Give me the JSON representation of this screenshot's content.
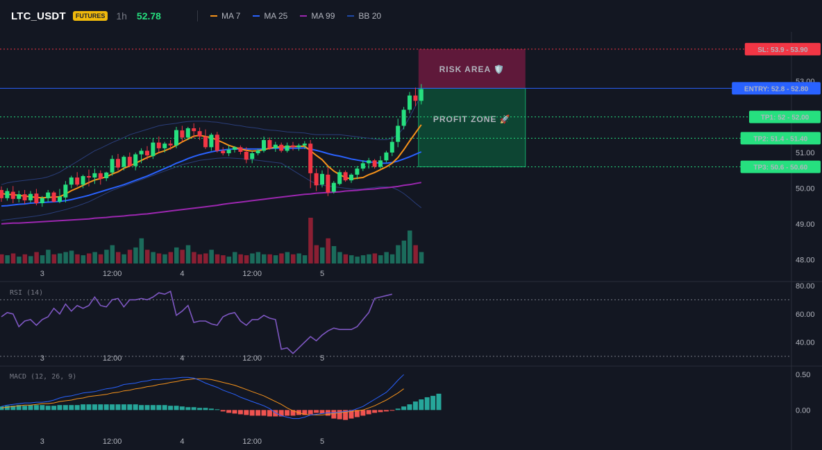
{
  "header": {
    "symbol": "LTC_USDT",
    "badge": "FUTURES",
    "timeframe": "1h",
    "price": "52.78",
    "legend": [
      {
        "label": "MA 7",
        "color": "#f7931a"
      },
      {
        "label": "MA 25",
        "color": "#2962ff"
      },
      {
        "label": "MA 99",
        "color": "#9c27b0"
      },
      {
        "label": "BB 20",
        "color": "#1e4aa8"
      }
    ]
  },
  "colors": {
    "up": "#26e07f",
    "down": "#f23645",
    "vol_up": "#1b6b5b",
    "vol_down": "#8b1f33",
    "ma7": "#f7931a",
    "ma25": "#2962ff",
    "ma99": "#9c27b0",
    "bb": "#2a3e7a",
    "rsi": "#7e57c2",
    "macd": "#2962ff",
    "signal": "#f7931a",
    "hist_up": "#26a69a",
    "hist_down": "#ef5350"
  },
  "price_axis": {
    "ticks": [
      "53.00",
      "52.00",
      "51.00",
      "50.00",
      "49.00",
      "48.00"
    ],
    "tick_values": [
      53,
      52,
      51,
      50,
      49,
      48
    ],
    "range": [
      47.85,
      54.15
    ]
  },
  "time_axis": {
    "labels": [
      "3",
      "12:00",
      "4",
      "12:00",
      "5"
    ],
    "label_bars": [
      7,
      19,
      31,
      43,
      55
    ]
  },
  "levels": [
    {
      "label": "SL: 53.9 - 53.90",
      "value": 53.9,
      "color": "#f23645",
      "style": "dotted"
    },
    {
      "label": "ENTRY: 52.8 - 52.80",
      "value": 52.8,
      "color": "#2962ff",
      "style": "solid"
    },
    {
      "label": "TP1: 52 - 52.00",
      "value": 52.0,
      "color": "#26e07f",
      "style": "dotted"
    },
    {
      "label": "TP2: 51.4 - 51.40",
      "value": 51.4,
      "color": "#26e07f",
      "style": "dotted"
    },
    {
      "label": "TP3: 50.6 - 50.60",
      "value": 50.6,
      "color": "#26e07f",
      "style": "dotted"
    }
  ],
  "zones": {
    "risk": {
      "label": "RISK AREA 🛡️",
      "top": 53.9,
      "bottom": 52.8
    },
    "profit": {
      "label": "PROFIT ZONE 🚀",
      "top": 52.8,
      "bottom": 50.6
    }
  },
  "rsi": {
    "title": "RSI (14)",
    "ticks": [
      "80.00",
      "60.00",
      "40.00"
    ],
    "tick_values": [
      80,
      60,
      40
    ],
    "bands": [
      70,
      30
    ],
    "range": [
      27,
      82
    ]
  },
  "macd": {
    "title": "MACD (12, 26, 9)",
    "ticks": [
      "0.50",
      "0.00"
    ],
    "tick_values": [
      0.5,
      0.0
    ],
    "range": [
      -0.3,
      0.6
    ]
  },
  "chart_data": {
    "type": "candlestick",
    "candles": [
      {
        "o": 49.95,
        "h": 50.05,
        "l": 49.62,
        "c": 49.72
      },
      {
        "o": 49.72,
        "h": 50.0,
        "l": 49.65,
        "c": 49.92
      },
      {
        "o": 49.9,
        "h": 50.06,
        "l": 49.58,
        "c": 49.7
      },
      {
        "o": 49.7,
        "h": 49.93,
        "l": 49.6,
        "c": 49.83
      },
      {
        "o": 49.83,
        "h": 49.95,
        "l": 49.56,
        "c": 49.66
      },
      {
        "o": 49.66,
        "h": 49.92,
        "l": 49.6,
        "c": 49.84
      },
      {
        "o": 49.85,
        "h": 49.98,
        "l": 49.52,
        "c": 49.58
      },
      {
        "o": 49.58,
        "h": 49.78,
        "l": 49.48,
        "c": 49.72
      },
      {
        "o": 49.72,
        "h": 49.95,
        "l": 49.62,
        "c": 49.88
      },
      {
        "o": 49.88,
        "h": 49.92,
        "l": 49.6,
        "c": 49.62
      },
      {
        "o": 49.62,
        "h": 49.98,
        "l": 49.58,
        "c": 49.76
      },
      {
        "o": 49.74,
        "h": 50.2,
        "l": 49.6,
        "c": 50.1
      },
      {
        "o": 50.1,
        "h": 50.35,
        "l": 50.0,
        "c": 50.3
      },
      {
        "o": 50.3,
        "h": 50.45,
        "l": 50.05,
        "c": 50.1
      },
      {
        "o": 50.1,
        "h": 50.38,
        "l": 50.0,
        "c": 50.34
      },
      {
        "o": 50.34,
        "h": 50.52,
        "l": 50.05,
        "c": 50.3
      },
      {
        "o": 50.3,
        "h": 50.55,
        "l": 50.12,
        "c": 50.42
      },
      {
        "o": 50.42,
        "h": 50.5,
        "l": 50.1,
        "c": 50.26
      },
      {
        "o": 50.28,
        "h": 50.46,
        "l": 50.2,
        "c": 50.44
      },
      {
        "o": 50.44,
        "h": 50.92,
        "l": 50.35,
        "c": 50.82
      },
      {
        "o": 50.82,
        "h": 50.96,
        "l": 50.5,
        "c": 50.58
      },
      {
        "o": 50.6,
        "h": 50.92,
        "l": 50.5,
        "c": 50.88
      },
      {
        "o": 50.88,
        "h": 51.0,
        "l": 50.6,
        "c": 50.62
      },
      {
        "o": 50.62,
        "h": 51.0,
        "l": 50.5,
        "c": 50.95
      },
      {
        "o": 50.95,
        "h": 51.12,
        "l": 50.7,
        "c": 51.05
      },
      {
        "o": 51.05,
        "h": 51.18,
        "l": 50.8,
        "c": 50.92
      },
      {
        "o": 50.9,
        "h": 51.4,
        "l": 50.82,
        "c": 51.28
      },
      {
        "o": 51.28,
        "h": 51.45,
        "l": 51.0,
        "c": 51.12
      },
      {
        "o": 51.12,
        "h": 51.3,
        "l": 51.0,
        "c": 51.25
      },
      {
        "o": 51.25,
        "h": 51.35,
        "l": 51.08,
        "c": 51.2
      },
      {
        "o": 51.2,
        "h": 51.72,
        "l": 51.12,
        "c": 51.63
      },
      {
        "o": 51.62,
        "h": 51.75,
        "l": 51.3,
        "c": 51.42
      },
      {
        "o": 51.42,
        "h": 51.72,
        "l": 51.35,
        "c": 51.68
      },
      {
        "o": 51.68,
        "h": 51.82,
        "l": 51.4,
        "c": 51.6
      },
      {
        "o": 51.6,
        "h": 51.7,
        "l": 51.35,
        "c": 51.45
      },
      {
        "o": 51.45,
        "h": 51.65,
        "l": 51.1,
        "c": 51.15
      },
      {
        "o": 51.15,
        "h": 51.55,
        "l": 51.05,
        "c": 51.5
      },
      {
        "o": 51.5,
        "h": 51.58,
        "l": 51.0,
        "c": 51.05
      },
      {
        "o": 51.05,
        "h": 51.15,
        "l": 50.92,
        "c": 50.98
      },
      {
        "o": 50.98,
        "h": 51.2,
        "l": 50.9,
        "c": 51.08
      },
      {
        "o": 51.08,
        "h": 51.18,
        "l": 51.0,
        "c": 51.15
      },
      {
        "o": 51.15,
        "h": 51.2,
        "l": 50.95,
        "c": 51.02
      },
      {
        "o": 51.02,
        "h": 51.15,
        "l": 50.7,
        "c": 50.8
      },
      {
        "o": 50.82,
        "h": 51.05,
        "l": 50.7,
        "c": 50.98
      },
      {
        "o": 50.98,
        "h": 51.1,
        "l": 50.92,
        "c": 51.06
      },
      {
        "o": 51.05,
        "h": 51.45,
        "l": 51.0,
        "c": 51.35
      },
      {
        "o": 51.35,
        "h": 51.42,
        "l": 51.08,
        "c": 51.12
      },
      {
        "o": 51.12,
        "h": 51.3,
        "l": 51.02,
        "c": 51.22
      },
      {
        "o": 51.22,
        "h": 51.28,
        "l": 51.0,
        "c": 51.05
      },
      {
        "o": 51.05,
        "h": 51.28,
        "l": 51.0,
        "c": 51.2
      },
      {
        "o": 51.2,
        "h": 51.3,
        "l": 51.06,
        "c": 51.15
      },
      {
        "o": 51.15,
        "h": 51.25,
        "l": 51.05,
        "c": 51.2
      },
      {
        "o": 51.2,
        "h": 51.32,
        "l": 51.1,
        "c": 51.25
      },
      {
        "o": 51.25,
        "h": 51.35,
        "l": 50.0,
        "c": 50.42
      },
      {
        "o": 50.42,
        "h": 50.55,
        "l": 49.92,
        "c": 50.08
      },
      {
        "o": 50.1,
        "h": 50.5,
        "l": 50.02,
        "c": 50.4
      },
      {
        "o": 50.38,
        "h": 50.6,
        "l": 49.78,
        "c": 49.88
      },
      {
        "o": 49.9,
        "h": 50.2,
        "l": 49.85,
        "c": 50.15
      },
      {
        "o": 50.12,
        "h": 50.52,
        "l": 50.08,
        "c": 50.45
      },
      {
        "o": 50.45,
        "h": 50.5,
        "l": 50.18,
        "c": 50.22
      },
      {
        "o": 50.22,
        "h": 50.42,
        "l": 50.15,
        "c": 50.38
      },
      {
        "o": 50.38,
        "h": 50.62,
        "l": 50.25,
        "c": 50.55
      },
      {
        "o": 50.55,
        "h": 50.78,
        "l": 50.48,
        "c": 50.7
      },
      {
        "o": 50.7,
        "h": 50.85,
        "l": 50.55,
        "c": 50.78
      },
      {
        "o": 50.78,
        "h": 50.82,
        "l": 50.55,
        "c": 50.6
      },
      {
        "o": 50.6,
        "h": 50.9,
        "l": 50.55,
        "c": 50.78
      },
      {
        "o": 50.78,
        "h": 51.05,
        "l": 50.72,
        "c": 51.0
      },
      {
        "o": 51.0,
        "h": 51.45,
        "l": 50.9,
        "c": 51.3
      },
      {
        "o": 51.3,
        "h": 51.95,
        "l": 51.15,
        "c": 51.75
      },
      {
        "o": 51.75,
        "h": 52.28,
        "l": 51.65,
        "c": 52.2
      },
      {
        "o": 52.2,
        "h": 52.7,
        "l": 52.1,
        "c": 52.6
      },
      {
        "o": 52.6,
        "h": 52.82,
        "l": 52.3,
        "c": 52.45
      },
      {
        "o": 52.45,
        "h": 52.92,
        "l": 52.35,
        "c": 52.78
      }
    ],
    "ma7": [
      49.85,
      49.83,
      49.82,
      49.8,
      49.78,
      49.76,
      49.74,
      49.73,
      49.74,
      49.75,
      49.76,
      49.84,
      49.93,
      50.0,
      50.08,
      50.16,
      50.23,
      50.27,
      50.32,
      50.4,
      50.46,
      50.56,
      50.62,
      50.7,
      50.78,
      50.86,
      50.92,
      51.0,
      51.05,
      51.12,
      51.2,
      51.3,
      51.38,
      51.46,
      51.48,
      51.45,
      51.42,
      51.35,
      51.28,
      51.2,
      51.15,
      51.1,
      51.06,
      51.04,
      51.05,
      51.08,
      51.12,
      51.15,
      51.16,
      51.16,
      51.17,
      51.17,
      51.18,
      51.05,
      50.92,
      50.8,
      50.62,
      50.48,
      50.38,
      50.3,
      50.26,
      50.28,
      50.3,
      50.38,
      50.44,
      50.52,
      50.6,
      50.7,
      50.86,
      51.08,
      51.32,
      51.55,
      51.78
    ],
    "ma25": [
      49.5,
      49.51,
      49.53,
      49.55,
      49.56,
      49.58,
      49.59,
      49.6,
      49.61,
      49.62,
      49.63,
      49.65,
      49.68,
      49.72,
      49.76,
      49.8,
      49.85,
      49.9,
      49.95,
      50.0,
      50.05,
      50.1,
      50.16,
      50.22,
      50.28,
      50.34,
      50.41,
      50.48,
      50.55,
      50.62,
      50.7,
      50.76,
      50.83,
      50.89,
      50.94,
      50.98,
      51.02,
      51.05,
      51.07,
      51.09,
      51.1,
      51.1,
      51.1,
      51.1,
      51.1,
      51.1,
      51.11,
      51.12,
      51.12,
      51.12,
      51.12,
      51.12,
      51.13,
      51.1,
      51.06,
      51.02,
      50.97,
      50.93,
      50.9,
      50.86,
      50.82,
      50.79,
      50.76,
      50.74,
      50.72,
      50.7,
      50.7,
      50.72,
      50.76,
      50.82,
      50.88,
      50.95,
      51.02
    ],
    "ma99": [
      49.0,
      49.01,
      49.02,
      49.02,
      49.03,
      49.04,
      49.05,
      49.06,
      49.07,
      49.08,
      49.09,
      49.1,
      49.11,
      49.12,
      49.13,
      49.14,
      49.16,
      49.17,
      49.18,
      49.2,
      49.21,
      49.22,
      49.24,
      49.25,
      49.27,
      49.28,
      49.3,
      49.32,
      49.34,
      49.36,
      49.38,
      49.4,
      49.42,
      49.44,
      49.46,
      49.48,
      49.5,
      49.52,
      49.55,
      49.57,
      49.59,
      49.61,
      49.63,
      49.65,
      49.67,
      49.69,
      49.71,
      49.73,
      49.75,
      49.77,
      49.79,
      49.81,
      49.83,
      49.84,
      49.86,
      49.87,
      49.88,
      49.89,
      49.9,
      49.92,
      49.93,
      49.94,
      49.96,
      49.97,
      49.98,
      50.0,
      50.01,
      50.03,
      50.05,
      50.08,
      50.1,
      50.13,
      50.16
    ],
    "bb_upper": [
      50.1,
      50.15,
      50.18,
      50.2,
      50.22,
      50.24,
      50.26,
      50.28,
      50.32,
      50.38,
      50.45,
      50.55,
      50.65,
      50.75,
      50.85,
      50.95,
      51.05,
      51.12,
      51.2,
      51.28,
      51.35,
      51.42,
      51.5,
      51.55,
      51.6,
      51.65,
      51.7,
      51.75,
      51.78,
      51.8,
      51.82,
      51.85,
      51.87,
      51.88,
      51.88,
      51.88,
      51.86,
      51.85,
      51.82,
      51.8,
      51.77,
      51.75,
      51.72,
      51.7,
      51.68,
      51.65,
      51.63,
      51.62,
      51.6,
      51.58,
      51.57,
      51.56,
      51.55,
      51.52,
      51.5,
      51.5,
      51.5,
      51.5,
      51.5,
      51.48,
      51.46,
      51.44,
      51.42,
      51.4,
      51.38,
      51.36,
      51.36,
      51.4,
      51.5,
      51.7,
      52.0,
      52.3,
      52.6
    ],
    "bb_lower": [
      49.1,
      49.12,
      49.14,
      49.16,
      49.18,
      49.2,
      49.22,
      49.25,
      49.28,
      49.32,
      49.36,
      49.4,
      49.45,
      49.5,
      49.56,
      49.62,
      49.7,
      49.78,
      49.86,
      49.94,
      50.0,
      50.06,
      50.12,
      50.18,
      50.24,
      50.3,
      50.36,
      50.42,
      50.48,
      50.54,
      50.6,
      50.66,
      50.7,
      50.74,
      50.78,
      50.8,
      50.82,
      50.84,
      50.85,
      50.85,
      50.84,
      50.83,
      50.82,
      50.8,
      50.78,
      50.76,
      50.74,
      50.72,
      50.7,
      50.6,
      50.5,
      50.4,
      50.3,
      50.2,
      50.12,
      50.08,
      50.06,
      50.04,
      50.02,
      50.0,
      49.98,
      49.97,
      49.98,
      50.0,
      50.02,
      50.04,
      50.04,
      50.02,
      49.95,
      49.85,
      49.72,
      49.58,
      49.45
    ],
    "volume": [
      0.2,
      0.18,
      0.22,
      0.15,
      0.2,
      0.16,
      0.25,
      0.18,
      0.3,
      0.2,
      0.22,
      0.25,
      0.28,
      0.2,
      0.18,
      0.22,
      0.25,
      0.2,
      0.3,
      0.4,
      0.25,
      0.2,
      0.3,
      0.35,
      0.55,
      0.3,
      0.25,
      0.22,
      0.2,
      0.25,
      0.35,
      0.3,
      0.4,
      0.25,
      0.2,
      0.22,
      0.3,
      0.2,
      0.18,
      0.15,
      0.25,
      0.2,
      0.18,
      0.22,
      0.25,
      0.2,
      0.2,
      0.18,
      0.22,
      0.25,
      0.2,
      0.22,
      0.18,
      1.0,
      0.4,
      0.35,
      0.55,
      0.38,
      0.25,
      0.2,
      0.18,
      0.15,
      0.18,
      0.2,
      0.22,
      0.18,
      0.25,
      0.2,
      0.4,
      0.5,
      0.72,
      0.4,
      0.25
    ],
    "rsi": [
      58,
      61,
      60,
      51,
      55,
      56,
      52,
      56,
      58,
      64,
      60,
      67,
      62,
      66,
      64,
      66,
      72,
      66,
      65,
      70,
      71,
      65,
      70,
      70,
      71,
      70,
      72,
      75,
      74,
      76,
      59,
      62,
      66,
      54,
      55,
      55,
      53,
      52,
      58,
      60,
      61,
      55,
      52,
      56,
      56,
      59,
      57,
      56,
      35,
      36,
      32,
      36,
      40,
      44,
      41,
      45,
      48,
      50,
      49,
      49,
      49,
      51,
      56,
      61,
      71,
      72,
      73,
      74
    ],
    "macd": [
      0.05,
      0.07,
      0.08,
      0.09,
      0.1,
      0.1,
      0.11,
      0.11,
      0.12,
      0.14,
      0.17,
      0.19,
      0.2,
      0.22,
      0.24,
      0.25,
      0.26,
      0.28,
      0.3,
      0.31,
      0.33,
      0.36,
      0.37,
      0.38,
      0.4,
      0.41,
      0.43,
      0.43,
      0.44,
      0.44,
      0.45,
      0.46,
      0.46,
      0.45,
      0.42,
      0.38,
      0.35,
      0.32,
      0.28,
      0.25,
      0.22,
      0.18,
      0.15,
      0.12,
      0.09,
      0.06,
      0.02,
      -0.04,
      -0.08,
      -0.1,
      -0.12,
      -0.12,
      -0.1,
      -0.07,
      -0.06,
      -0.05,
      -0.04,
      -0.04,
      -0.03,
      -0.02,
      -0.01,
      0.02,
      0.05,
      0.1,
      0.15,
      0.2,
      0.25,
      0.33,
      0.42,
      0.5
    ],
    "signal": [
      0.03,
      0.04,
      0.05,
      0.06,
      0.07,
      0.07,
      0.08,
      0.09,
      0.09,
      0.1,
      0.12,
      0.13,
      0.14,
      0.16,
      0.17,
      0.19,
      0.2,
      0.21,
      0.22,
      0.24,
      0.25,
      0.27,
      0.28,
      0.3,
      0.31,
      0.33,
      0.34,
      0.36,
      0.37,
      0.39,
      0.4,
      0.42,
      0.43,
      0.44,
      0.44,
      0.44,
      0.43,
      0.41,
      0.39,
      0.37,
      0.35,
      0.32,
      0.29,
      0.26,
      0.23,
      0.2,
      0.16,
      0.12,
      0.08,
      0.03,
      -0.01,
      -0.04,
      -0.06,
      -0.07,
      -0.07,
      -0.07,
      -0.06,
      -0.05,
      -0.04,
      -0.03,
      -0.02,
      -0.01,
      0.0,
      0.03,
      0.06,
      0.1,
      0.14,
      0.19,
      0.24,
      0.3
    ],
    "histogram": [
      0.05,
      0.06,
      0.06,
      0.07,
      0.06,
      0.07,
      0.07,
      0.07,
      0.06,
      0.06,
      0.07,
      0.07,
      0.07,
      0.07,
      0.08,
      0.08,
      0.08,
      0.08,
      0.08,
      0.08,
      0.08,
      0.08,
      0.08,
      0.08,
      0.07,
      0.07,
      0.07,
      0.07,
      0.07,
      0.06,
      0.06,
      0.05,
      0.04,
      0.04,
      0.03,
      0.03,
      0.02,
      0.01,
      -0.02,
      -0.04,
      -0.05,
      -0.06,
      -0.07,
      -0.08,
      -0.08,
      -0.08,
      -0.09,
      -0.09,
      -0.09,
      -0.08,
      -0.08,
      -0.07,
      -0.07,
      -0.06,
      -0.04,
      -0.05,
      -0.08,
      -0.12,
      -0.13,
      -0.14,
      -0.12,
      -0.1,
      -0.08,
      -0.06,
      -0.04,
      -0.03,
      -0.02,
      -0.01,
      0.02,
      0.05,
      0.08,
      0.12,
      0.15,
      0.18,
      0.2,
      0.23
    ]
  }
}
